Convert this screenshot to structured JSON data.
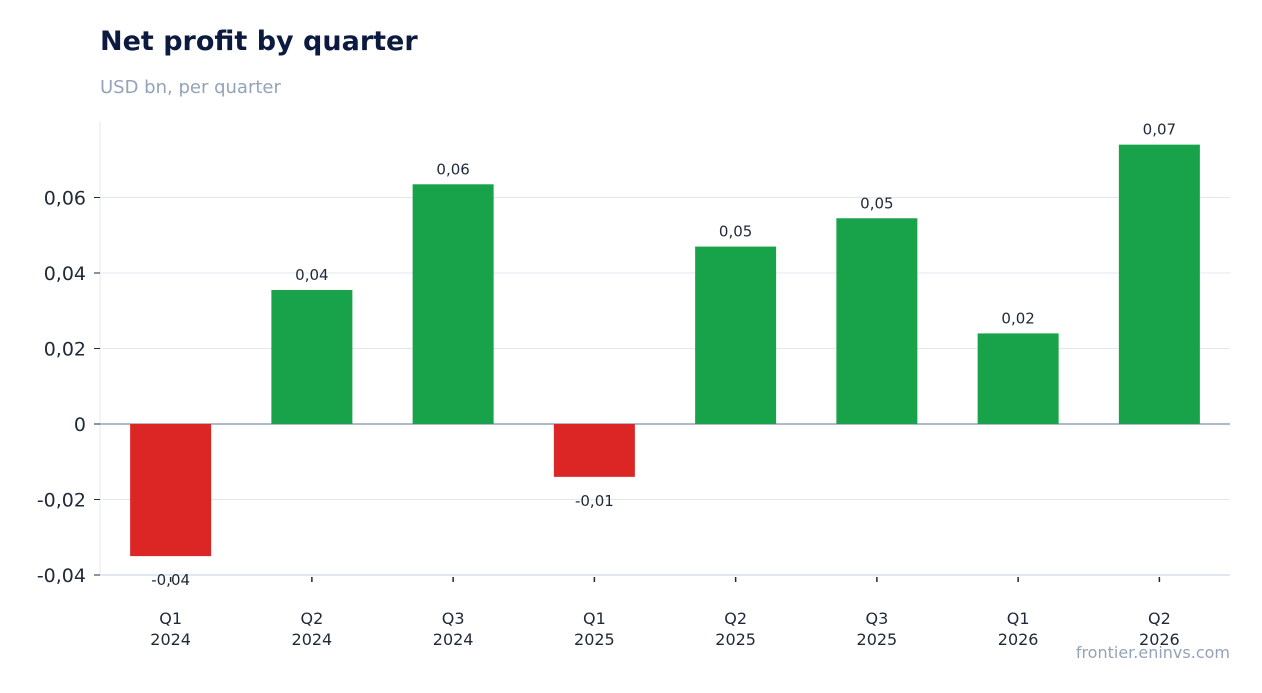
{
  "chart_data": {
    "type": "bar",
    "title": "Net profit by quarter",
    "subtitle": "USD bn, per quarter",
    "source": "frontier.eninvs.com",
    "categories": [
      [
        "Q1",
        "2024"
      ],
      [
        "Q2",
        "2024"
      ],
      [
        "Q3",
        "2024"
      ],
      [
        "Q1",
        "2025"
      ],
      [
        "Q2",
        "2025"
      ],
      [
        "Q3",
        "2025"
      ],
      [
        "Q1",
        "2026"
      ],
      [
        "Q2",
        "2026"
      ]
    ],
    "values": [
      -0.035,
      0.0355,
      0.0635,
      -0.014,
      0.047,
      0.0545,
      0.024,
      0.074
    ],
    "data_labels": [
      "-0,04",
      "0,04",
      "0,06",
      "-0,01",
      "0,05",
      "0,05",
      "0,02",
      "0,07"
    ],
    "yticks": [
      -0.04,
      -0.02,
      0,
      0.02,
      0.04,
      0.06
    ],
    "ytick_labels": [
      "-0,04",
      "-0,02",
      "0",
      "0,02",
      "0,04",
      "0,06"
    ],
    "ylim": [
      -0.04,
      0.08
    ],
    "grid": true,
    "colors": {
      "positive": "#18a34a",
      "negative": "#dc2626",
      "grid": "#e2e8f0",
      "zero_line": "#94a3b8"
    }
  }
}
